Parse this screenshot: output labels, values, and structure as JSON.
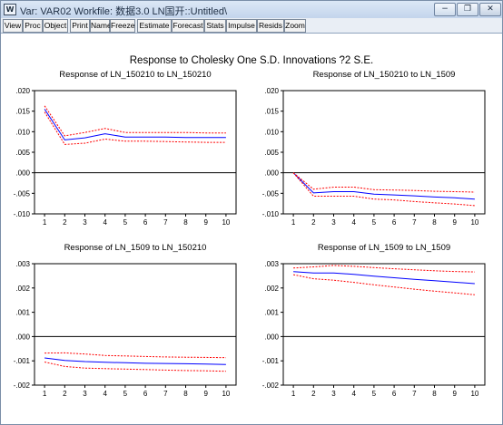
{
  "window": {
    "title": "Var: VAR02    Workfile: 数据3.0 LN国开::Untitled\\",
    "icon_label": "W",
    "controls": [
      {
        "name": "minimize-button",
        "glyph": "−"
      },
      {
        "name": "restore-button",
        "glyph": "❐"
      },
      {
        "name": "close-button",
        "glyph": "✕"
      }
    ]
  },
  "toolbar": {
    "buttons": [
      "View",
      "Proc",
      "Object",
      "Print",
      "Name",
      "Freeze",
      "Estimate",
      "Forecast",
      "Stats",
      "Impulse",
      "Resids",
      "Zoom"
    ]
  },
  "colors": {
    "response_line": "#0000ff",
    "band_line": "#ff0000",
    "zero_line": "#000000"
  },
  "chart_data": {
    "type": "line",
    "title": "Response to Cholesky One S.D. Innovations ?2 S.E.",
    "panels": [
      {
        "title": "Response of LN_150210 to LN_150210",
        "x": [
          1,
          2,
          3,
          4,
          5,
          6,
          7,
          8,
          9,
          10
        ],
        "ylim": [
          -0.01,
          0.02
        ],
        "yticks": [
          ".020",
          ".015",
          ".010",
          ".005",
          ".000",
          "-.005",
          "-.010"
        ],
        "ytick_values": [
          0.02,
          0.015,
          0.01,
          0.005,
          0.0,
          -0.005,
          -0.01
        ],
        "series": [
          {
            "role": "response",
            "values": [
              0.0155,
              0.008,
              0.0085,
              0.0095,
              0.0087,
              0.0087,
              0.0087,
              0.0086,
              0.0086,
              0.0086
            ]
          },
          {
            "role": "upper",
            "values": [
              0.0163,
              0.009,
              0.0098,
              0.0108,
              0.0098,
              0.0098,
              0.0098,
              0.0098,
              0.0097,
              0.0097
            ]
          },
          {
            "role": "lower",
            "values": [
              0.0148,
              0.0069,
              0.0072,
              0.0082,
              0.0077,
              0.0077,
              0.0076,
              0.0075,
              0.0074,
              0.0074
            ]
          }
        ]
      },
      {
        "title": "Response of LN_150210 to LN_1509",
        "x": [
          1,
          2,
          3,
          4,
          5,
          6,
          7,
          8,
          9,
          10
        ],
        "ylim": [
          -0.01,
          0.02
        ],
        "yticks": [
          ".020",
          ".015",
          ".010",
          ".005",
          ".000",
          "-.005",
          "-.010"
        ],
        "ytick_values": [
          0.02,
          0.015,
          0.01,
          0.005,
          0.0,
          -0.005,
          -0.01
        ],
        "series": [
          {
            "role": "response",
            "values": [
              0.0,
              -0.0049,
              -0.0046,
              -0.0046,
              -0.0052,
              -0.0054,
              -0.0056,
              -0.0059,
              -0.0061,
              -0.0064
            ]
          },
          {
            "role": "upper",
            "values": [
              0.0,
              -0.004,
              -0.0035,
              -0.0035,
              -0.0041,
              -0.0042,
              -0.0043,
              -0.0045,
              -0.0046,
              -0.0047
            ]
          },
          {
            "role": "lower",
            "values": [
              0.0,
              -0.0057,
              -0.0057,
              -0.0057,
              -0.0064,
              -0.0066,
              -0.007,
              -0.0073,
              -0.0076,
              -0.008
            ]
          }
        ]
      },
      {
        "title": "Response of LN_1509 to LN_150210",
        "x": [
          1,
          2,
          3,
          4,
          5,
          6,
          7,
          8,
          9,
          10
        ],
        "ylim": [
          -0.002,
          0.003
        ],
        "yticks": [
          ".003",
          ".002",
          ".001",
          ".000",
          "-.001",
          "-.002"
        ],
        "ytick_values": [
          0.003,
          0.002,
          0.001,
          0.0,
          -0.001,
          -0.002
        ],
        "series": [
          {
            "role": "response",
            "values": [
              -0.00088,
              -0.00098,
              -0.00103,
              -0.00106,
              -0.00108,
              -0.0011,
              -0.00111,
              -0.00112,
              -0.00113,
              -0.00115
            ]
          },
          {
            "role": "upper",
            "values": [
              -0.00068,
              -0.00067,
              -0.00072,
              -0.00078,
              -0.0008,
              -0.00082,
              -0.00084,
              -0.00085,
              -0.00086,
              -0.00087
            ]
          },
          {
            "role": "lower",
            "values": [
              -0.00105,
              -0.00123,
              -0.0013,
              -0.00132,
              -0.00134,
              -0.00136,
              -0.00138,
              -0.0014,
              -0.00141,
              -0.00143
            ]
          }
        ]
      },
      {
        "title": "Response of LN_1509 to LN_1509",
        "x": [
          1,
          2,
          3,
          4,
          5,
          6,
          7,
          8,
          9,
          10
        ],
        "ylim": [
          -0.002,
          0.003
        ],
        "yticks": [
          ".003",
          ".002",
          ".001",
          ".000",
          "-.001",
          "-.002"
        ],
        "ytick_values": [
          0.003,
          0.002,
          0.001,
          0.0,
          -0.001,
          -0.002
        ],
        "series": [
          {
            "role": "response",
            "values": [
              0.00267,
              0.00262,
              0.00262,
              0.00256,
              0.00249,
              0.00242,
              0.00236,
              0.0023,
              0.00224,
              0.00218
            ]
          },
          {
            "role": "upper",
            "values": [
              0.00282,
              0.00287,
              0.00293,
              0.00289,
              0.00284,
              0.00279,
              0.00275,
              0.00271,
              0.00268,
              0.00266
            ]
          },
          {
            "role": "lower",
            "values": [
              0.00255,
              0.00238,
              0.00232,
              0.00223,
              0.00213,
              0.00204,
              0.00195,
              0.00187,
              0.0018,
              0.00172
            ]
          }
        ]
      }
    ]
  }
}
